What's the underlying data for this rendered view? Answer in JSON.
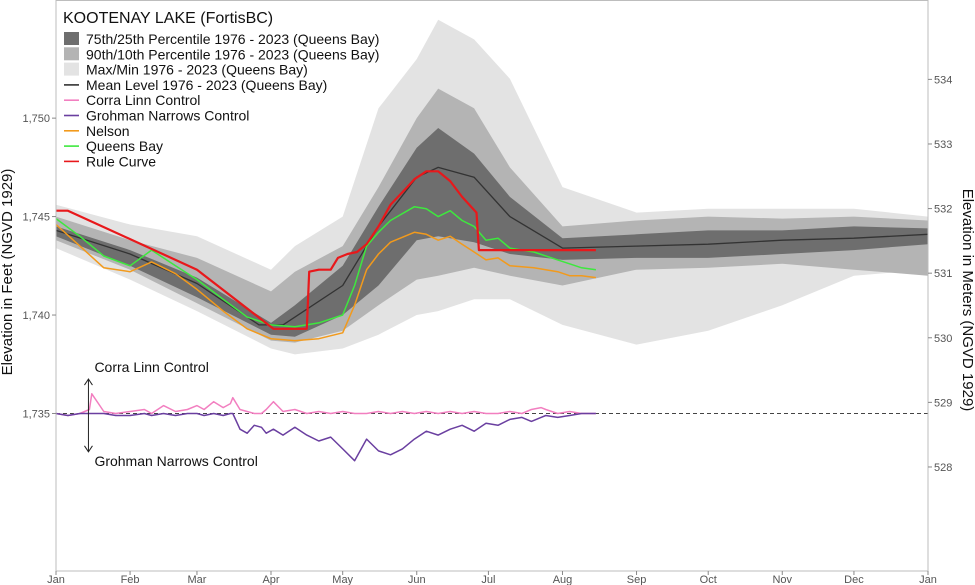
{
  "chart_data": {
    "type": "line",
    "title": "KOOTENAY LAKE (FortisBC)",
    "ylabel_left": "Elevation in Feet (NGVD 1929)",
    "ylabel_right": "Elevation in Meters (NGVD 1929)",
    "x_unit": "day of year",
    "xlim": [
      0,
      365
    ],
    "ylim": [
      1727,
      1756
    ],
    "x_ticks": [
      {
        "label": "Jan",
        "day": 0
      },
      {
        "label": "Feb",
        "day": 31
      },
      {
        "label": "Mar",
        "day": 59
      },
      {
        "label": "Apr",
        "day": 90
      },
      {
        "label": "May",
        "day": 120
      },
      {
        "label": "Jun",
        "day": 151
      },
      {
        "label": "Jul",
        "day": 181
      },
      {
        "label": "Aug",
        "day": 212
      },
      {
        "label": "Sep",
        "day": 243
      },
      {
        "label": "Oct",
        "day": 273
      },
      {
        "label": "Nov",
        "day": 304
      },
      {
        "label": "Dec",
        "day": 334
      },
      {
        "label": "Jan",
        "day": 365
      }
    ],
    "y_ticks_left": [
      {
        "label": "1,735",
        "value": 1735
      },
      {
        "label": "1,740",
        "value": 1740
      },
      {
        "label": "1,745",
        "value": 1745
      },
      {
        "label": "1,750",
        "value": 1750
      }
    ],
    "y_ticks_right": [
      {
        "label": "528",
        "value": 528
      },
      {
        "label": "529",
        "value": 529
      },
      {
        "label": "530",
        "value": 530
      },
      {
        "label": "531",
        "value": 531
      },
      {
        "label": "532",
        "value": 532
      },
      {
        "label": "533",
        "value": 533
      },
      {
        "label": "534",
        "value": 534
      }
    ],
    "reference_line": {
      "value": 1735,
      "style": "dashed"
    },
    "annotations": [
      {
        "text": "Corra Linn Control",
        "day": 14,
        "value": 1736.9
      },
      {
        "text": "Grohman Narrows Control",
        "day": 14,
        "value": 1732.8
      }
    ],
    "legend": {
      "position": "top-left",
      "entries": [
        {
          "label": "75th/25th Percentile 1976 - 2023 (Queens Bay)",
          "color": "#6e6e6e",
          "kind": "box"
        },
        {
          "label": "90th/10th Percentile 1976 - 2023 (Queens Bay)",
          "color": "#b4b4b4",
          "kind": "box"
        },
        {
          "label": "Max/Min 1976 - 2023 (Queens Bay)",
          "color": "#e3e3e3",
          "kind": "box"
        },
        {
          "label": "Mean Level 1976 - 2023 (Queens Bay)",
          "color": "#333333",
          "kind": "line"
        },
        {
          "label": "Corra Linn Control",
          "color": "#f27fc0",
          "kind": "line"
        },
        {
          "label": "Grohman Narrows Control",
          "color": "#6a3fa0",
          "kind": "line"
        },
        {
          "label": "Nelson",
          "color": "#f29a1c",
          "kind": "line"
        },
        {
          "label": "Queens Bay",
          "color": "#3ee83e",
          "kind": "line"
        },
        {
          "label": "Rule Curve",
          "color": "#e8181b",
          "kind": "line"
        }
      ]
    },
    "bands": [
      {
        "name": "Max/Min 1976 - 2023 (Queens Bay)",
        "color": "#e3e3e3",
        "x": [
          0,
          31,
          59,
          90,
          100,
          120,
          135,
          151,
          160,
          175,
          190,
          212,
          243,
          273,
          304,
          334,
          365
        ],
        "upper": [
          1745.6,
          1744.6,
          1744.0,
          1742.3,
          1743.5,
          1745.0,
          1750.5,
          1753.0,
          1755.0,
          1754.0,
          1752.0,
          1746.5,
          1745.2,
          1745.4,
          1745.4,
          1745.4,
          1745.0
        ],
        "lower": [
          1743.4,
          1741.8,
          1740.2,
          1738.3,
          1738.0,
          1738.3,
          1739.0,
          1740.0,
          1740.2,
          1740.8,
          1740.8,
          1739.5,
          1738.5,
          1739.2,
          1740.5,
          1742.0,
          1742.3
        ]
      },
      {
        "name": "90th/10th Percentile 1976 - 2023 (Queens Bay)",
        "color": "#b4b4b4",
        "x": [
          0,
          31,
          59,
          90,
          100,
          120,
          135,
          151,
          160,
          175,
          190,
          212,
          243,
          273,
          304,
          334,
          365
        ],
        "upper": [
          1745.0,
          1743.8,
          1742.9,
          1741.2,
          1742.2,
          1743.5,
          1746.5,
          1750.0,
          1751.5,
          1750.5,
          1747.5,
          1744.5,
          1744.8,
          1745.0,
          1744.9,
          1745.0,
          1744.8
        ],
        "lower": [
          1743.8,
          1742.3,
          1740.6,
          1738.7,
          1738.6,
          1739.2,
          1740.5,
          1741.8,
          1742.0,
          1742.4,
          1742.0,
          1741.5,
          1742.3,
          1742.4,
          1742.6,
          1742.3,
          1742.0
        ]
      },
      {
        "name": "75th/25th Percentile 1976 - 2023 (Queens Bay)",
        "color": "#6e6e6e",
        "x": [
          0,
          31,
          59,
          90,
          100,
          120,
          135,
          151,
          160,
          175,
          190,
          212,
          243,
          273,
          304,
          334,
          365
        ],
        "upper": [
          1744.5,
          1743.3,
          1741.9,
          1739.6,
          1740.5,
          1742.5,
          1745.5,
          1748.5,
          1749.5,
          1748.2,
          1746.0,
          1743.9,
          1744.1,
          1744.3,
          1744.3,
          1744.5,
          1744.4
        ],
        "lower": [
          1744.0,
          1742.5,
          1740.9,
          1739.0,
          1738.9,
          1740.0,
          1741.5,
          1743.8,
          1744.0,
          1743.7,
          1743.1,
          1742.8,
          1742.9,
          1742.9,
          1743.1,
          1743.3,
          1743.6
        ]
      }
    ],
    "series": [
      {
        "name": "Mean Level 1976 - 2023 (Queens Bay)",
        "color": "#333333",
        "x": [
          0,
          31,
          59,
          85,
          95,
          120,
          135,
          151,
          160,
          175,
          190,
          212,
          243,
          273,
          304,
          334,
          365
        ],
        "values": [
          1744.3,
          1743.1,
          1741.6,
          1739.5,
          1739.5,
          1741.5,
          1744.5,
          1747.0,
          1747.5,
          1747.0,
          1745.0,
          1743.4,
          1743.5,
          1743.6,
          1743.8,
          1743.9,
          1744.1
        ]
      },
      {
        "name": "Queens Bay",
        "color": "#3ee83e",
        "x": [
          0,
          10,
          20,
          31,
          40,
          50,
          59,
          70,
          80,
          90,
          100,
          110,
          120,
          125,
          130,
          135,
          140,
          150,
          155,
          160,
          165,
          170,
          175,
          180,
          185,
          190,
          200,
          210,
          215,
          220,
          226
        ],
        "values": [
          1744.9,
          1744.0,
          1743.0,
          1742.5,
          1743.3,
          1742.5,
          1741.8,
          1740.8,
          1739.9,
          1739.5,
          1739.4,
          1739.6,
          1740.0,
          1741.5,
          1743.5,
          1744.2,
          1744.8,
          1745.5,
          1745.4,
          1745.0,
          1745.3,
          1744.8,
          1744.5,
          1743.8,
          1743.9,
          1743.4,
          1743.2,
          1742.8,
          1742.6,
          1742.4,
          1742.3
        ]
      },
      {
        "name": "Nelson",
        "color": "#f29a1c",
        "x": [
          0,
          10,
          20,
          31,
          40,
          50,
          59,
          70,
          80,
          90,
          100,
          110,
          120,
          125,
          130,
          135,
          140,
          150,
          155,
          160,
          165,
          170,
          175,
          180,
          185,
          190,
          200,
          210,
          215,
          220,
          226
        ],
        "values": [
          1744.6,
          1743.5,
          1742.4,
          1742.2,
          1742.7,
          1742.1,
          1741.3,
          1740.2,
          1739.3,
          1738.8,
          1738.7,
          1738.8,
          1739.1,
          1740.5,
          1742.3,
          1743.1,
          1743.7,
          1744.2,
          1744.1,
          1743.8,
          1744.0,
          1743.6,
          1743.2,
          1742.8,
          1742.9,
          1742.5,
          1742.4,
          1742.2,
          1742.0,
          1742.0,
          1741.9
        ]
      },
      {
        "name": "Rule Curve",
        "color": "#e8181b",
        "x": [
          0,
          5,
          59,
          91,
          105,
          106,
          110,
          115,
          118,
          122,
          126,
          130,
          135,
          140,
          147,
          150,
          155,
          160,
          165,
          170,
          176,
          177,
          181,
          190,
          200,
          212,
          226
        ],
        "values": [
          1745.3,
          1745.3,
          1742.3,
          1739.3,
          1739.3,
          1742.2,
          1742.3,
          1742.3,
          1742.9,
          1743.1,
          1743.2,
          1743.6,
          1744.5,
          1745.6,
          1746.5,
          1746.9,
          1747.3,
          1747.3,
          1746.8,
          1746.0,
          1745.2,
          1743.3,
          1743.3,
          1743.3,
          1743.3,
          1743.3,
          1743.3
        ]
      },
      {
        "name": "Corra Linn Control",
        "color": "#f27fc0",
        "x": [
          0,
          5,
          10,
          14,
          15,
          20,
          25,
          31,
          37,
          40,
          45,
          50,
          55,
          59,
          62,
          66,
          70,
          73,
          74,
          77,
          80,
          83,
          86,
          88,
          91,
          95,
          100,
          105,
          110,
          115,
          120,
          125,
          130,
          135,
          140,
          145,
          150,
          155,
          160,
          165,
          170,
          175,
          180,
          185,
          190,
          195,
          199,
          203,
          205,
          210,
          215,
          220,
          226
        ],
        "values": [
          1735.0,
          1734.9,
          1735.0,
          1735.2,
          1736.0,
          1735.1,
          1735.0,
          1735.1,
          1735.2,
          1735.0,
          1735.4,
          1735.1,
          1735.2,
          1735.4,
          1735.2,
          1735.6,
          1735.3,
          1735.5,
          1735.8,
          1735.2,
          1735.1,
          1735.0,
          1735.0,
          1735.2,
          1735.6,
          1735.1,
          1735.2,
          1735.0,
          1735.1,
          1735.0,
          1735.1,
          1735.0,
          1735.0,
          1735.1,
          1735.0,
          1735.1,
          1735.0,
          1735.1,
          1735.0,
          1735.1,
          1735.0,
          1735.1,
          1735.0,
          1735.0,
          1735.1,
          1735.0,
          1735.2,
          1735.3,
          1735.2,
          1735.0,
          1735.1,
          1735.0,
          1735.0
        ]
      },
      {
        "name": "Grohman Narrows Control",
        "color": "#6a3fa0",
        "x": [
          0,
          5,
          10,
          14,
          15,
          20,
          25,
          31,
          37,
          40,
          45,
          50,
          55,
          59,
          62,
          66,
          70,
          73,
          74,
          77,
          80,
          83,
          86,
          88,
          91,
          95,
          100,
          105,
          110,
          115,
          120,
          125,
          130,
          135,
          140,
          145,
          150,
          155,
          160,
          165,
          170,
          175,
          180,
          185,
          190,
          195,
          199,
          203,
          205,
          210,
          215,
          220,
          226
        ],
        "values": [
          1735.0,
          1734.9,
          1735.0,
          1735.0,
          1735.0,
          1735.0,
          1734.9,
          1734.9,
          1735.0,
          1734.9,
          1735.0,
          1734.9,
          1735.0,
          1735.0,
          1734.9,
          1735.0,
          1734.9,
          1735.0,
          1735.0,
          1734.2,
          1734.0,
          1734.4,
          1734.3,
          1734.0,
          1734.2,
          1733.9,
          1734.3,
          1733.9,
          1733.6,
          1733.8,
          1733.2,
          1732.6,
          1733.7,
          1733.1,
          1732.9,
          1733.2,
          1733.7,
          1734.1,
          1733.9,
          1734.2,
          1734.4,
          1734.1,
          1734.5,
          1734.4,
          1734.7,
          1734.8,
          1734.6,
          1734.8,
          1734.9,
          1734.8,
          1734.9,
          1735.0,
          1735.0
        ]
      }
    ]
  }
}
